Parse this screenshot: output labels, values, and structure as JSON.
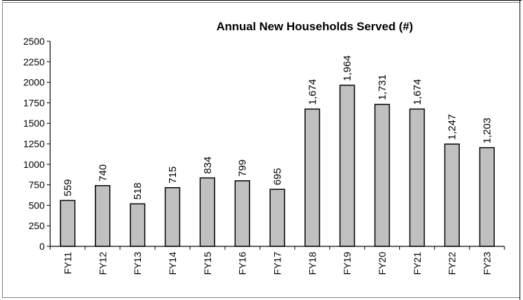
{
  "chart_data": {
    "type": "bar",
    "title": "Annual New Households Served (#)",
    "categories": [
      "FY11",
      "FY12",
      "FY13",
      "FY14",
      "FY15",
      "FY16",
      "FY17",
      "FY18",
      "FY19",
      "FY20",
      "FY21",
      "FY22",
      "FY23"
    ],
    "values": [
      559,
      740,
      518,
      715,
      834,
      799,
      695,
      1674,
      1964,
      1731,
      1674,
      1247,
      1203
    ],
    "data_labels": [
      "559",
      "740",
      "518",
      "715",
      "834",
      "799",
      "695",
      "1,674",
      "1,964",
      "1,731",
      "1,674",
      "1,247",
      "1,203"
    ],
    "ylim": [
      0,
      2500
    ],
    "yticks": [
      0,
      250,
      500,
      750,
      1000,
      1250,
      1500,
      1750,
      2000,
      2250,
      2500
    ],
    "ytick_labels": [
      "0",
      "250",
      "500",
      "750",
      "1000",
      "1250",
      "1500",
      "1750",
      "2000",
      "2250",
      "2500"
    ],
    "xlabel": "",
    "ylabel": "",
    "grid": false,
    "legend": "none",
    "colors": {
      "bar_fill": "#c0c0c0",
      "bar_stroke": "#000000",
      "axis": "#000000",
      "frame": "#808080"
    }
  }
}
